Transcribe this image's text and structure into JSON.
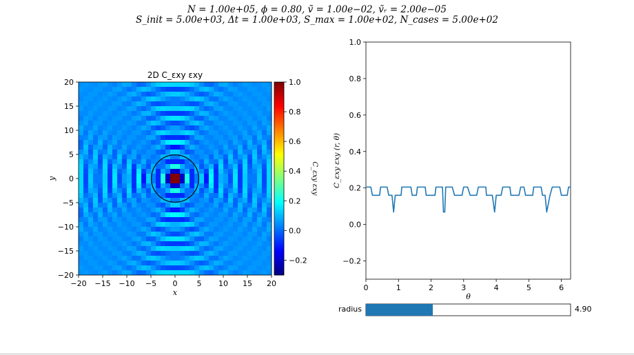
{
  "figure": {
    "suptitle_line1": "N = 1.00e+05, ϕ = 0.80, ṽ = 1.00e−02, ṽᵣ = 2.00e−05",
    "suptitle_line2": "S_init = 5.00e+03, Δt = 1.00e+03, S_max = 1.00e+02, N_cases = 5.00e+02"
  },
  "slider": {
    "label": "radius",
    "value_text": "4.90",
    "value": 4.9,
    "min": 0,
    "max": 15,
    "fill_color": "#1f77b4"
  },
  "chart_data": [
    {
      "type": "heatmap",
      "title": "2D C_εxy εxy",
      "xlabel": "x",
      "ylabel": "y",
      "xlim": [
        -20,
        20
      ],
      "ylim": [
        -20,
        20
      ],
      "x_ticks": [
        "−20",
        "−15",
        "−10",
        "−5",
        "0",
        "5",
        "10",
        "15",
        "20"
      ],
      "y_ticks": [
        "20",
        "15",
        "10",
        "5",
        "0",
        "−5",
        "−10",
        "−15",
        "−20"
      ],
      "grid_size": 40,
      "cmap": "jet",
      "vmin": -0.3,
      "vmax": 1.0,
      "center_value": 1.0,
      "colorbar": {
        "label": "C_εxy εxy",
        "ticks": [
          "1.0",
          "0.8",
          "0.6",
          "0.4",
          "0.2",
          "0.0",
          "−0.2"
        ],
        "tick_values": [
          1.0,
          0.8,
          0.6,
          0.4,
          0.2,
          0.0,
          -0.2
        ]
      },
      "circle": {
        "radius": 4.9,
        "color": "#000000"
      }
    },
    {
      "type": "line",
      "xlabel": "θ",
      "ylabel": "C_εxy εxy (r, θ)",
      "xlim": [
        0,
        6.283
      ],
      "ylim": [
        -0.3,
        1.0
      ],
      "x_ticks": [
        "0",
        "1",
        "2",
        "3",
        "4",
        "5",
        "6"
      ],
      "y_ticks": [
        "1.0",
        "0.8",
        "0.6",
        "0.4",
        "0.2",
        "0.0",
        "−0.2"
      ],
      "line_color": "#1f77b4",
      "series": [
        {
          "x": [
            0.0,
            0.15,
            0.2,
            0.42,
            0.45,
            0.65,
            0.7,
            0.8,
            0.85,
            0.9,
            1.08,
            1.1,
            1.38,
            1.42,
            1.55,
            1.58,
            1.82,
            1.85,
            2.12,
            2.15,
            2.35,
            2.38,
            2.42,
            2.45,
            2.65,
            2.72,
            2.95,
            3.0,
            3.12,
            3.2,
            3.4,
            3.45,
            3.68,
            3.7,
            3.88,
            3.95,
            4.0,
            4.15,
            4.2,
            4.42,
            4.45,
            4.7,
            4.75,
            4.85,
            4.9,
            5.12,
            5.15,
            5.38,
            5.42,
            5.5,
            5.55,
            5.65,
            5.72,
            5.95,
            6.0,
            6.18,
            6.22,
            6.283
          ],
          "y": [
            0.205,
            0.205,
            0.16,
            0.16,
            0.205,
            0.205,
            0.16,
            0.16,
            0.068,
            0.16,
            0.16,
            0.205,
            0.205,
            0.16,
            0.16,
            0.205,
            0.205,
            0.16,
            0.16,
            0.205,
            0.205,
            0.068,
            0.068,
            0.205,
            0.205,
            0.16,
            0.16,
            0.205,
            0.205,
            0.16,
            0.16,
            0.205,
            0.205,
            0.16,
            0.16,
            0.068,
            0.16,
            0.16,
            0.205,
            0.205,
            0.16,
            0.16,
            0.205,
            0.205,
            0.16,
            0.16,
            0.205,
            0.205,
            0.16,
            0.16,
            0.068,
            0.16,
            0.205,
            0.205,
            0.16,
            0.16,
            0.205,
            0.205
          ]
        }
      ]
    }
  ]
}
